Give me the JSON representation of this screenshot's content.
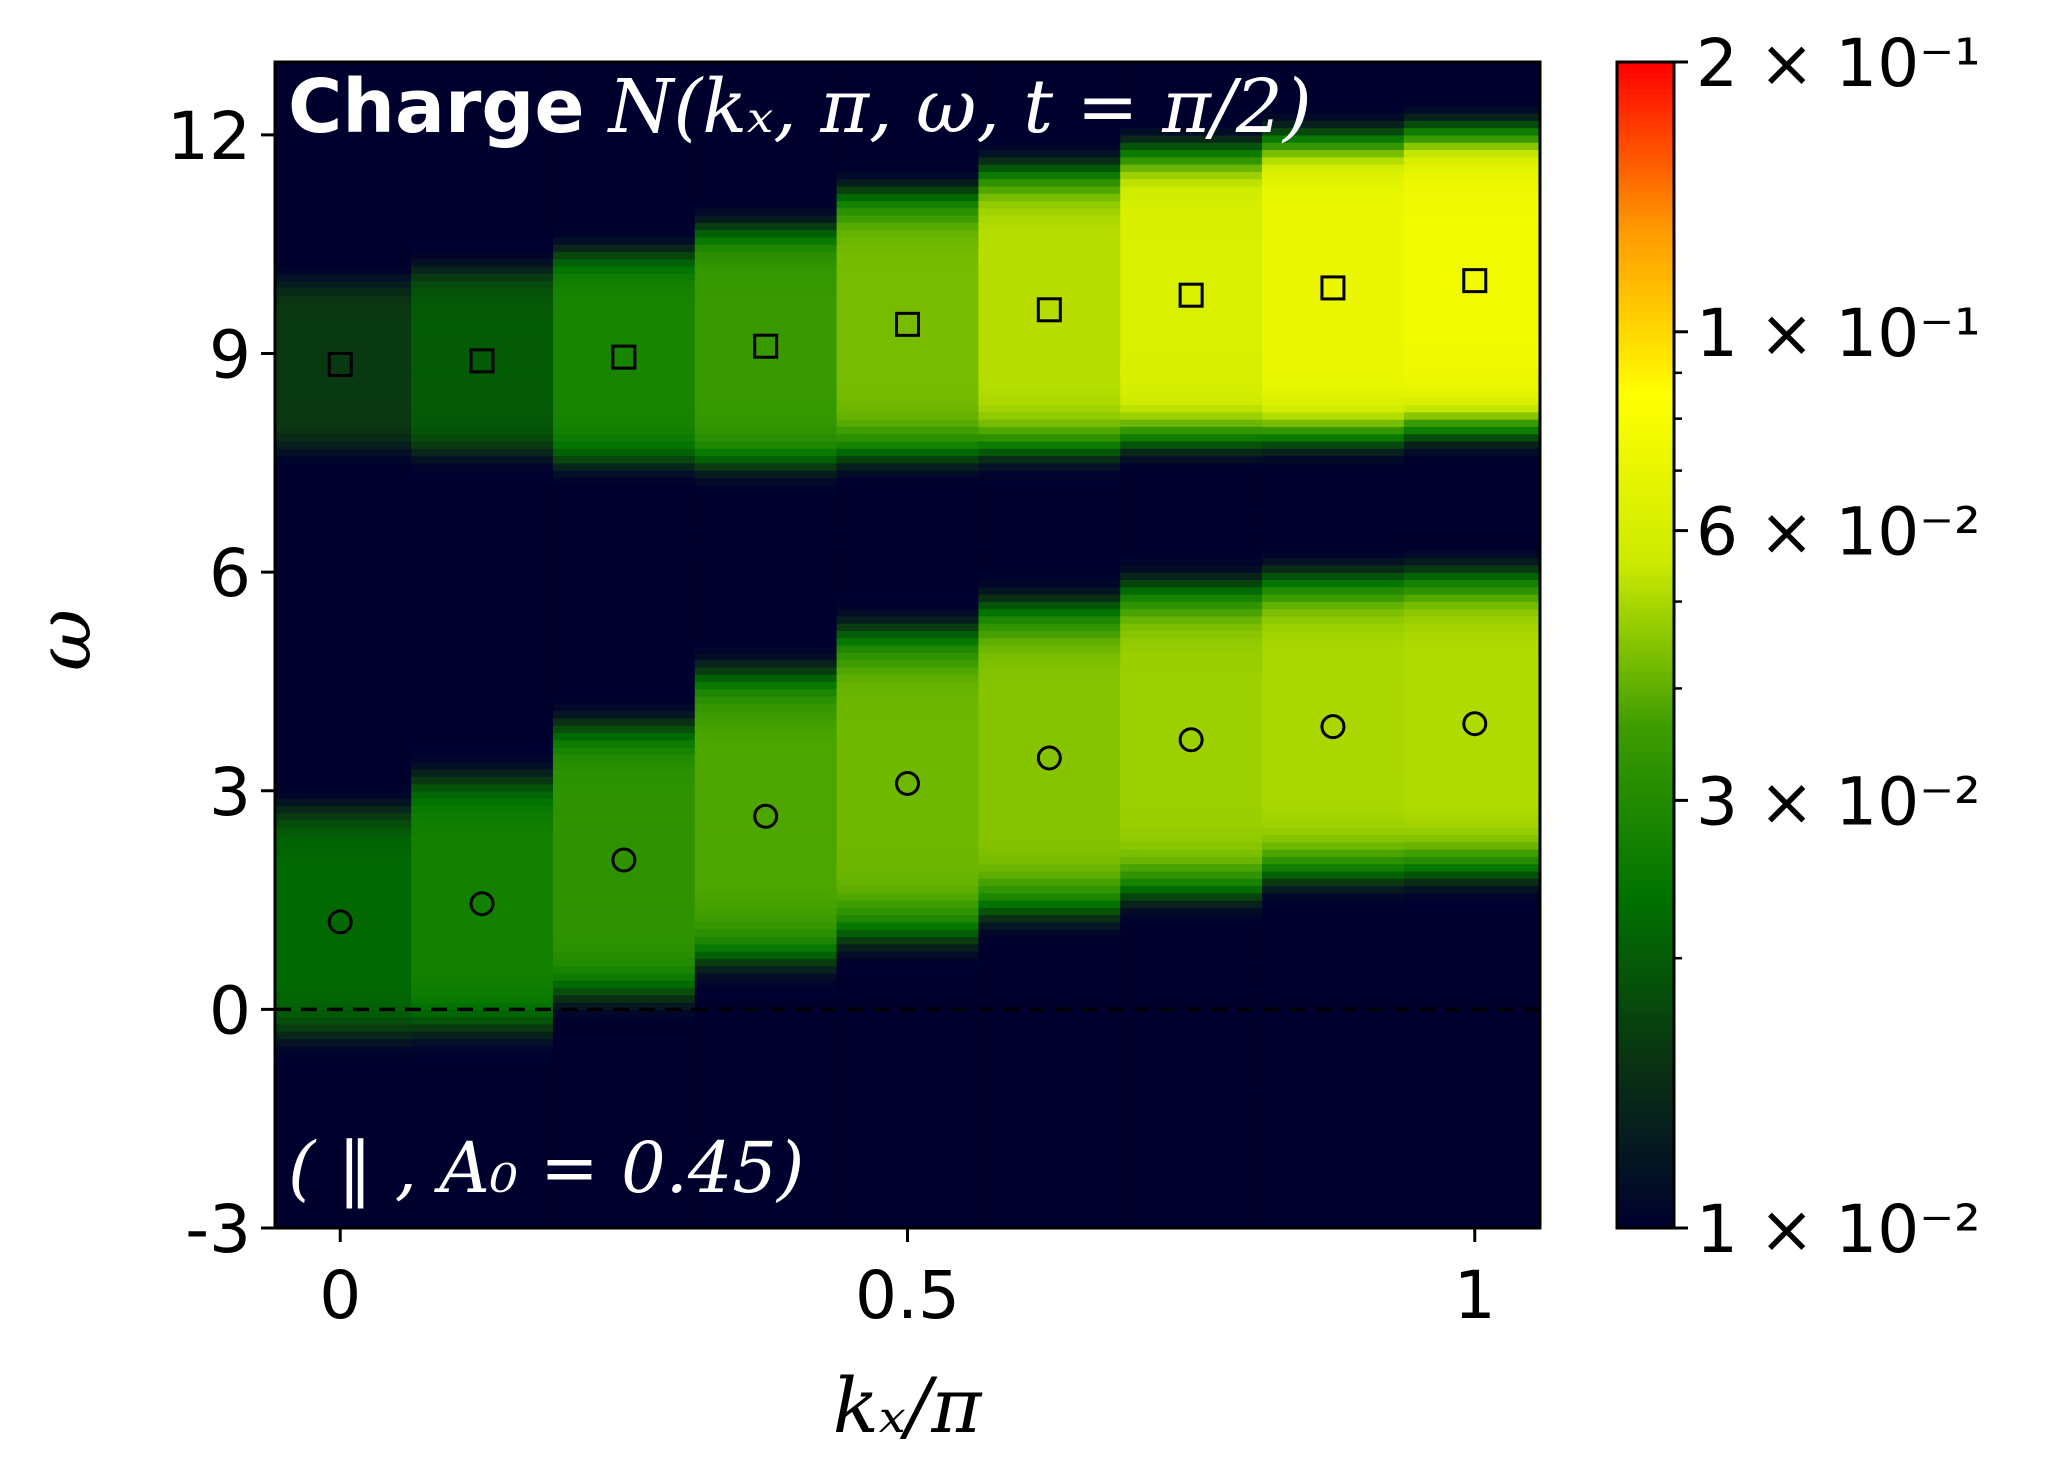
{
  "chart_data": {
    "type": "heatmap",
    "title_bold": "Charge",
    "title_math": "N(kₓ, π, ω, t = π/2)",
    "annotation": "( ‖ , A₀ = 0.45)",
    "xlabel": "kₓ/π",
    "ylabel": "ω",
    "xlim": [
      -0.0575,
      1.0575
    ],
    "ylim": [
      -3,
      13
    ],
    "x_ticks": [
      {
        "value": 0,
        "label": "0"
      },
      {
        "value": 0.5,
        "label": "0.5"
      },
      {
        "value": 1,
        "label": "1"
      }
    ],
    "y_ticks": [
      {
        "value": -3,
        "label": "-3"
      },
      {
        "value": 0,
        "label": "0"
      },
      {
        "value": 3,
        "label": "3"
      },
      {
        "value": 6,
        "label": "6"
      },
      {
        "value": 9,
        "label": "9"
      },
      {
        "value": 12,
        "label": "12"
      }
    ],
    "kx": [
      0,
      0.125,
      0.25,
      0.375,
      0.5,
      0.625,
      0.75,
      0.875,
      1.0
    ],
    "colorbar": {
      "scale": "log",
      "range": [
        0.01,
        0.2
      ],
      "ticks": [
        {
          "value": 0.01,
          "label": "1 × 10⁻²"
        },
        {
          "value": 0.03,
          "label": "3 × 10⁻²"
        },
        {
          "value": 0.06,
          "label": "6 × 10⁻²"
        },
        {
          "value": 0.1,
          "label": "1 × 10⁻¹"
        },
        {
          "value": 0.2,
          "label": "2 × 10⁻¹"
        }
      ],
      "colormap": [
        "#00002e",
        "#0a3312",
        "#007300",
        "#3c9c00",
        "#ccea00",
        "#ffff00",
        "#ff9900",
        "#ff0000"
      ]
    },
    "series": [
      {
        "marker": "circle",
        "omega": [
          1.2,
          1.45,
          2.05,
          2.65,
          3.1,
          3.45,
          3.7,
          3.88,
          3.92
        ],
        "intensity": [
          0.022,
          0.027,
          0.033,
          0.038,
          0.042,
          0.045,
          0.048,
          0.05,
          0.051
        ],
        "width": [
          1.4,
          1.55,
          1.65,
          1.75,
          1.85,
          1.85,
          1.85,
          1.8,
          1.8
        ]
      },
      {
        "marker": "square",
        "omega": [
          8.85,
          8.9,
          8.95,
          9.1,
          9.4,
          9.6,
          9.8,
          9.9,
          10.0
        ],
        "intensity": [
          0.016,
          0.02,
          0.028,
          0.035,
          0.043,
          0.052,
          0.062,
          0.072,
          0.076
        ],
        "width": [
          1.05,
          1.15,
          1.3,
          1.45,
          1.6,
          1.7,
          1.75,
          1.8,
          1.8
        ]
      }
    ],
    "reference_line": {
      "y": 0,
      "style": "dashed"
    }
  }
}
